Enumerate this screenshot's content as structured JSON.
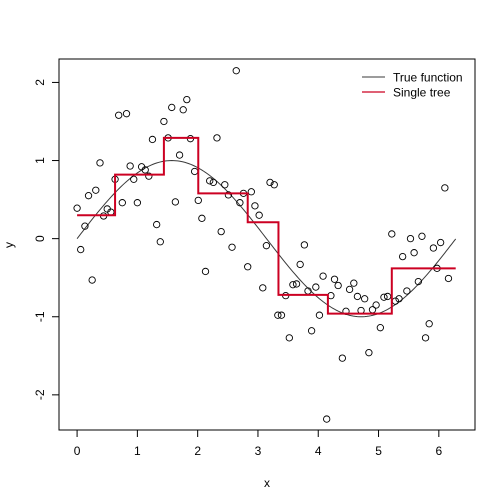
{
  "chart_data": {
    "type": "scatter",
    "xlabel": "x",
    "ylabel": "y",
    "xlim": [
      -0.3,
      6.6
    ],
    "ylim": [
      -2.45,
      2.3
    ],
    "xticks": [
      0,
      1,
      2,
      3,
      4,
      5,
      6
    ],
    "yticks": [
      -2,
      -1,
      0,
      1,
      2
    ],
    "grid": false,
    "legend_position": "top-right",
    "colors": {
      "points": "#000000",
      "true_function": "#3a3a3a",
      "single_tree": "#cc0022"
    },
    "legend": [
      {
        "label": "True function",
        "color": "#3a3a3a"
      },
      {
        "label": "Single tree",
        "color": "#cc0022"
      }
    ],
    "true_function": {
      "x_start": 0,
      "x_end": 6.28
    },
    "points": [
      [
        0.0,
        0.39
      ],
      [
        0.06,
        -0.14
      ],
      [
        0.13,
        0.16
      ],
      [
        0.19,
        0.55
      ],
      [
        0.25,
        -0.53
      ],
      [
        0.31,
        0.62
      ],
      [
        0.38,
        0.97
      ],
      [
        0.44,
        0.29
      ],
      [
        0.5,
        0.38
      ],
      [
        0.56,
        0.34
      ],
      [
        0.63,
        0.76
      ],
      [
        0.69,
        1.58
      ],
      [
        0.75,
        0.46
      ],
      [
        0.82,
        1.6
      ],
      [
        0.88,
        0.93
      ],
      [
        0.94,
        0.76
      ],
      [
        1.0,
        0.46
      ],
      [
        1.07,
        0.92
      ],
      [
        1.13,
        0.88
      ],
      [
        1.19,
        0.8
      ],
      [
        1.25,
        1.27
      ],
      [
        1.32,
        0.18
      ],
      [
        1.38,
        -0.04
      ],
      [
        1.44,
        1.5
      ],
      [
        1.51,
        1.29
      ],
      [
        1.57,
        1.68
      ],
      [
        1.63,
        0.47
      ],
      [
        1.7,
        1.07
      ],
      [
        1.76,
        1.65
      ],
      [
        1.82,
        1.78
      ],
      [
        1.88,
        1.28
      ],
      [
        1.95,
        0.86
      ],
      [
        2.01,
        0.49
      ],
      [
        2.07,
        0.26
      ],
      [
        2.13,
        -0.42
      ],
      [
        2.2,
        0.74
      ],
      [
        2.26,
        0.72
      ],
      [
        2.32,
        1.29
      ],
      [
        2.39,
        0.09
      ],
      [
        2.45,
        0.69
      ],
      [
        2.51,
        0.56
      ],
      [
        2.57,
        -0.11
      ],
      [
        2.64,
        2.15
      ],
      [
        2.7,
        0.46
      ],
      [
        2.76,
        0.58
      ],
      [
        2.83,
        -0.36
      ],
      [
        2.89,
        0.6
      ],
      [
        2.95,
        0.42
      ],
      [
        3.02,
        0.3
      ],
      [
        3.08,
        -0.63
      ],
      [
        3.14,
        -0.09
      ],
      [
        3.2,
        0.72
      ],
      [
        3.27,
        0.69
      ],
      [
        3.33,
        -0.98
      ],
      [
        3.39,
        -0.98
      ],
      [
        3.46,
        -0.73
      ],
      [
        3.52,
        -1.27
      ],
      [
        3.58,
        -0.59
      ],
      [
        3.64,
        -0.58
      ],
      [
        3.7,
        -0.33
      ],
      [
        3.77,
        -0.08
      ],
      [
        3.83,
        -0.67
      ],
      [
        3.89,
        -1.18
      ],
      [
        3.96,
        -0.62
      ],
      [
        4.02,
        -0.98
      ],
      [
        4.08,
        -0.48
      ],
      [
        4.14,
        -2.31
      ],
      [
        4.21,
        -0.73
      ],
      [
        4.27,
        -0.52
      ],
      [
        4.33,
        -0.6
      ],
      [
        4.4,
        -1.53
      ],
      [
        4.46,
        -0.93
      ],
      [
        4.52,
        -0.65
      ],
      [
        4.59,
        -0.57
      ],
      [
        4.65,
        -0.74
      ],
      [
        4.71,
        -0.92
      ],
      [
        4.77,
        -0.77
      ],
      [
        4.84,
        -1.46
      ],
      [
        4.9,
        -0.91
      ],
      [
        4.96,
        -0.85
      ],
      [
        5.03,
        -1.14
      ],
      [
        5.09,
        -0.75
      ],
      [
        5.15,
        -0.74
      ],
      [
        5.22,
        0.06
      ],
      [
        5.28,
        -0.8
      ],
      [
        5.34,
        -0.77
      ],
      [
        5.4,
        -0.23
      ],
      [
        5.47,
        -0.67
      ],
      [
        5.53,
        0.0
      ],
      [
        5.59,
        -0.18
      ],
      [
        5.66,
        -0.55
      ],
      [
        5.72,
        0.03
      ],
      [
        5.78,
        -1.27
      ],
      [
        5.84,
        -1.09
      ],
      [
        5.91,
        -0.12
      ],
      [
        5.97,
        -0.38
      ],
      [
        6.03,
        -0.05
      ],
      [
        6.1,
        0.65
      ],
      [
        6.16,
        -0.51
      ]
    ],
    "single_tree": [
      {
        "x0": 0.0,
        "x1": 0.63,
        "y": 0.3
      },
      {
        "x0": 0.63,
        "x1": 1.44,
        "y": 0.82
      },
      {
        "x0": 1.44,
        "x1": 2.01,
        "y": 1.29
      },
      {
        "x0": 2.01,
        "x1": 2.83,
        "y": 0.58
      },
      {
        "x0": 2.83,
        "x1": 3.34,
        "y": 0.21
      },
      {
        "x0": 3.34,
        "x1": 4.16,
        "y": -0.72
      },
      {
        "x0": 4.16,
        "x1": 5.22,
        "y": -0.96
      },
      {
        "x0": 5.22,
        "x1": 6.28,
        "y": -0.38
      }
    ]
  }
}
